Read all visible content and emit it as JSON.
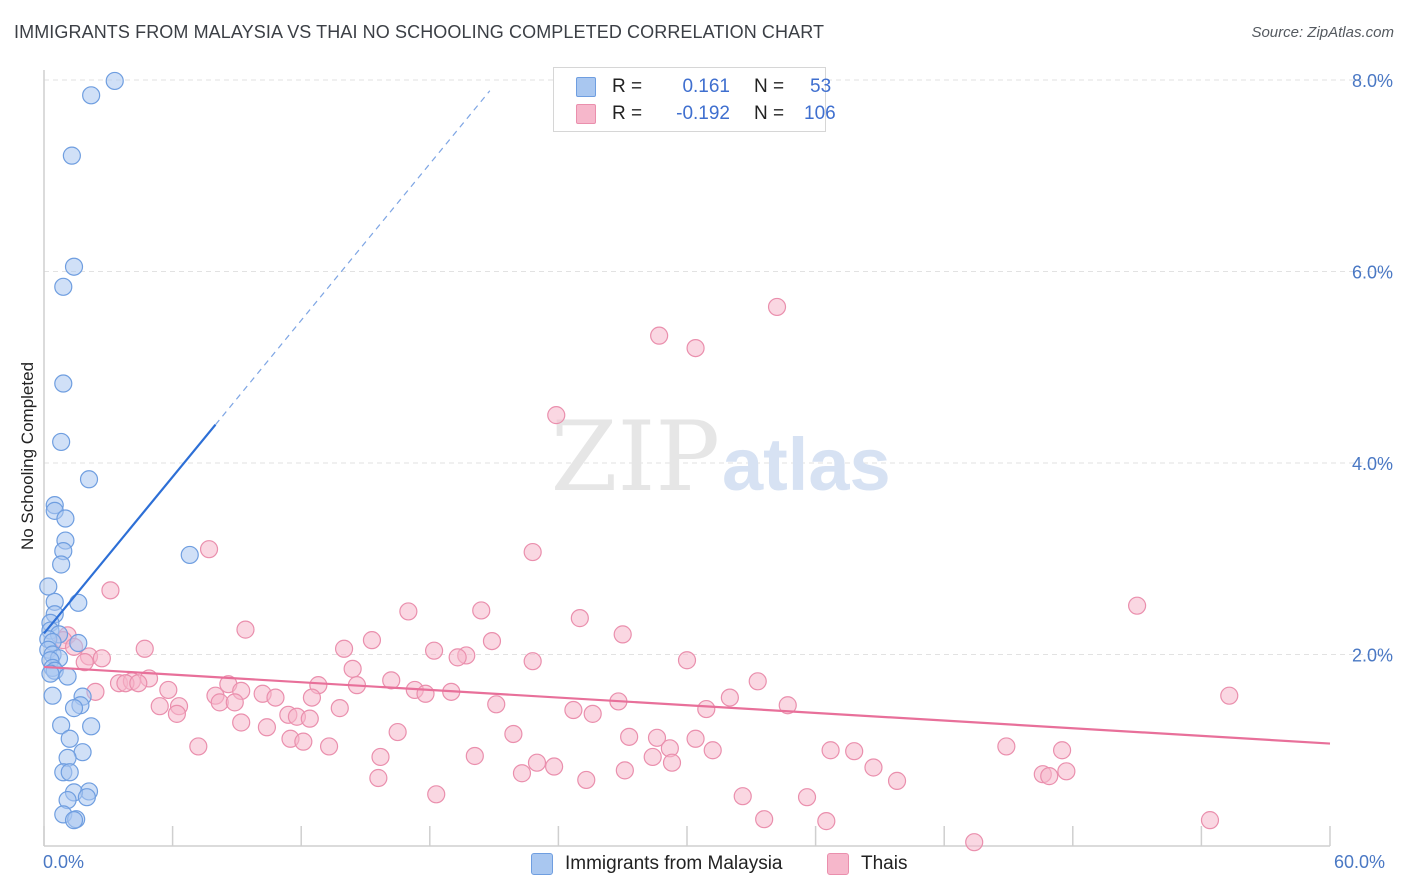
{
  "header": {
    "title": "IMMIGRANTS FROM MALAYSIA VS THAI NO SCHOOLING COMPLETED CORRELATION CHART",
    "source": "Source: ZipAtlas.com"
  },
  "watermark": {
    "zip": "ZIP",
    "atlas": "atlas"
  },
  "legend": {
    "rows": [
      {
        "r_key": "R =",
        "r_val": "0.161",
        "n_key": "N =",
        "n_val": "53",
        "color": "#a9c7f0",
        "border": "#6f9ee0"
      },
      {
        "r_key": "R =",
        "r_val": "-0.192",
        "n_key": "N =",
        "n_val": "106",
        "color": "#f6b7cb",
        "border": "#ea8fad"
      }
    ]
  },
  "bottom_legend": {
    "malaysia": "Immigrants from Malaysia",
    "thais": "Thais"
  },
  "colors": {
    "blue_fill": "#a9c7f0",
    "blue_stroke": "#6f9ee0",
    "blue_line": "#2d6fd6",
    "pink_fill": "#f6b7cb",
    "pink_stroke": "#ea8fad",
    "pink_line": "#e8709a",
    "grid": "#e2e2e2",
    "axis_text": "#4a78c4"
  },
  "chart_data": {
    "type": "scatter",
    "title": "IMMIGRANTS FROM MALAYSIA VS THAI NO SCHOOLING COMPLETED CORRELATION CHART",
    "xlabel": "",
    "ylabel": "No Schooling Completed",
    "xlim": [
      0,
      60
    ],
    "ylim": [
      0,
      8.2
    ],
    "x_tick_labels": [
      "0.0%",
      "60.0%"
    ],
    "y_ticks": [
      2,
      4,
      6,
      8
    ],
    "y_tick_labels": [
      "2.0%",
      "4.0%",
      "6.0%",
      "8.0%"
    ],
    "grid": true,
    "series": [
      {
        "name": "Immigrants from Malaysia",
        "r": 0.161,
        "n": 53,
        "trend": {
          "x0": 0,
          "y0": 2.22,
          "x1": 8.0,
          "y1": 4.4,
          "x_dash_end": 20.8
        },
        "points": [
          [
            3.3,
            7.99
          ],
          [
            2.2,
            7.84
          ],
          [
            1.3,
            7.21
          ],
          [
            1.4,
            6.05
          ],
          [
            0.9,
            5.84
          ],
          [
            0.9,
            4.83
          ],
          [
            0.8,
            4.22
          ],
          [
            2.1,
            3.83
          ],
          [
            0.5,
            3.56
          ],
          [
            0.5,
            3.5
          ],
          [
            1.0,
            3.42
          ],
          [
            1.0,
            3.19
          ],
          [
            0.9,
            3.08
          ],
          [
            6.8,
            3.04
          ],
          [
            0.8,
            2.94
          ],
          [
            0.2,
            2.71
          ],
          [
            0.5,
            2.55
          ],
          [
            1.6,
            2.54
          ],
          [
            0.5,
            2.42
          ],
          [
            0.3,
            2.33
          ],
          [
            0.3,
            2.25
          ],
          [
            0.7,
            2.21
          ],
          [
            0.2,
            2.16
          ],
          [
            0.4,
            2.13
          ],
          [
            1.6,
            2.12
          ],
          [
            0.2,
            2.05
          ],
          [
            0.4,
            2.0
          ],
          [
            0.7,
            1.96
          ],
          [
            0.3,
            1.94
          ],
          [
            0.4,
            1.86
          ],
          [
            0.5,
            1.83
          ],
          [
            0.3,
            1.8
          ],
          [
            1.1,
            1.77
          ],
          [
            0.4,
            1.57
          ],
          [
            1.8,
            1.56
          ],
          [
            1.7,
            1.47
          ],
          [
            1.4,
            1.44
          ],
          [
            0.8,
            1.26
          ],
          [
            2.2,
            1.25
          ],
          [
            1.2,
            1.12
          ],
          [
            1.8,
            0.98
          ],
          [
            1.1,
            0.92
          ],
          [
            0.9,
            0.77
          ],
          [
            1.2,
            0.77
          ],
          [
            2.1,
            0.57
          ],
          [
            1.4,
            0.56
          ],
          [
            2.0,
            0.51
          ],
          [
            1.1,
            0.48
          ],
          [
            0.9,
            0.33
          ],
          [
            1.5,
            0.28
          ],
          [
            1.4,
            0.27
          ]
        ]
      },
      {
        "name": "Thais",
        "r": -0.192,
        "n": 106,
        "trend": {
          "x0": 0,
          "y0": 1.87,
          "x1": 60,
          "y1": 1.07
        },
        "points": [
          [
            34.2,
            5.63
          ],
          [
            28.7,
            5.33
          ],
          [
            30.4,
            5.2
          ],
          [
            23.9,
            4.5
          ],
          [
            7.7,
            3.1
          ],
          [
            22.8,
            3.07
          ],
          [
            3.1,
            2.67
          ],
          [
            51.0,
            2.51
          ],
          [
            17.0,
            2.45
          ],
          [
            20.4,
            2.46
          ],
          [
            25.0,
            2.38
          ],
          [
            9.4,
            2.26
          ],
          [
            27.0,
            2.21
          ],
          [
            15.3,
            2.15
          ],
          [
            20.9,
            2.14
          ],
          [
            1.1,
            2.2
          ],
          [
            0.9,
            2.15
          ],
          [
            1.4,
            2.08
          ],
          [
            4.7,
            2.06
          ],
          [
            14.0,
            2.06
          ],
          [
            18.2,
            2.04
          ],
          [
            19.7,
            1.99
          ],
          [
            19.3,
            1.97
          ],
          [
            2.1,
            1.98
          ],
          [
            2.7,
            1.96
          ],
          [
            1.9,
            1.92
          ],
          [
            30.0,
            1.94
          ],
          [
            22.8,
            1.93
          ],
          [
            14.4,
            1.85
          ],
          [
            4.9,
            1.75
          ],
          [
            3.5,
            1.7
          ],
          [
            16.2,
            1.73
          ],
          [
            33.3,
            1.72
          ],
          [
            4.1,
            1.72
          ],
          [
            3.8,
            1.7
          ],
          [
            4.4,
            1.7
          ],
          [
            12.8,
            1.68
          ],
          [
            8.6,
            1.69
          ],
          [
            14.6,
            1.68
          ],
          [
            5.8,
            1.63
          ],
          [
            17.3,
            1.63
          ],
          [
            17.8,
            1.59
          ],
          [
            19.0,
            1.61
          ],
          [
            2.4,
            1.61
          ],
          [
            9.2,
            1.62
          ],
          [
            10.2,
            1.59
          ],
          [
            8.0,
            1.57
          ],
          [
            10.8,
            1.55
          ],
          [
            12.5,
            1.55
          ],
          [
            32.0,
            1.55
          ],
          [
            55.3,
            1.57
          ],
          [
            8.2,
            1.5
          ],
          [
            8.9,
            1.5
          ],
          [
            26.8,
            1.51
          ],
          [
            21.1,
            1.48
          ],
          [
            34.7,
            1.47
          ],
          [
            6.3,
            1.46
          ],
          [
            5.4,
            1.46
          ],
          [
            13.8,
            1.44
          ],
          [
            30.9,
            1.43
          ],
          [
            24.7,
            1.42
          ],
          [
            25.6,
            1.38
          ],
          [
            6.2,
            1.38
          ],
          [
            11.4,
            1.37
          ],
          [
            11.8,
            1.35
          ],
          [
            12.4,
            1.33
          ],
          [
            9.2,
            1.29
          ],
          [
            10.4,
            1.24
          ],
          [
            16.5,
            1.19
          ],
          [
            21.9,
            1.17
          ],
          [
            27.3,
            1.14
          ],
          [
            28.6,
            1.13
          ],
          [
            11.5,
            1.12
          ],
          [
            12.1,
            1.09
          ],
          [
            30.4,
            1.12
          ],
          [
            7.2,
            1.04
          ],
          [
            13.3,
            1.04
          ],
          [
            29.2,
            1.02
          ],
          [
            31.2,
            1.0
          ],
          [
            36.7,
            1.0
          ],
          [
            37.8,
            0.99
          ],
          [
            44.9,
            1.04
          ],
          [
            47.5,
            1.0
          ],
          [
            20.1,
            0.94
          ],
          [
            15.7,
            0.93
          ],
          [
            28.4,
            0.93
          ],
          [
            29.3,
            0.87
          ],
          [
            23.0,
            0.87
          ],
          [
            38.7,
            0.82
          ],
          [
            23.8,
            0.83
          ],
          [
            47.7,
            0.78
          ],
          [
            27.1,
            0.79
          ],
          [
            46.6,
            0.75
          ],
          [
            22.3,
            0.76
          ],
          [
            46.9,
            0.73
          ],
          [
            15.6,
            0.71
          ],
          [
            25.3,
            0.69
          ],
          [
            39.8,
            0.68
          ],
          [
            18.3,
            0.54
          ],
          [
            32.6,
            0.52
          ],
          [
            35.6,
            0.51
          ],
          [
            36.5,
            0.26
          ],
          [
            33.6,
            0.28
          ],
          [
            54.4,
            0.27
          ],
          [
            43.4,
            0.04
          ]
        ]
      }
    ]
  }
}
